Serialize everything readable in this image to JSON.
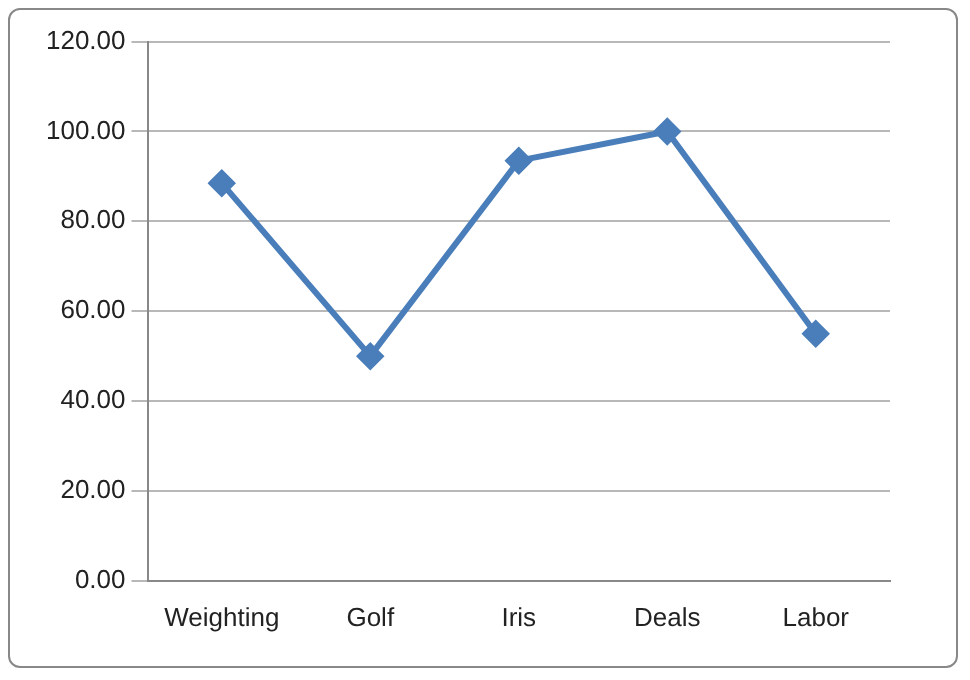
{
  "chart_data": {
    "type": "line",
    "categories": [
      "Weighting",
      "Golf",
      "Iris",
      "Deals",
      "Labor"
    ],
    "series": [
      {
        "color": "#4a7ebb",
        "values": [
          88.5,
          50,
          93.5,
          100,
          55
        ]
      }
    ],
    "ylim": [
      0,
      120
    ],
    "yticks": [
      {
        "value": 0,
        "label": "0.00"
      },
      {
        "value": 20,
        "label": "20.00"
      },
      {
        "value": 40,
        "label": "40.00"
      },
      {
        "value": 60,
        "label": "60.00"
      },
      {
        "value": 80,
        "label": "80.00"
      },
      {
        "value": 100,
        "label": "100.00"
      },
      {
        "value": 120,
        "label": "120.00"
      }
    ],
    "grid": "y",
    "marker": "diamond",
    "line_style": "solid",
    "legend": false
  }
}
